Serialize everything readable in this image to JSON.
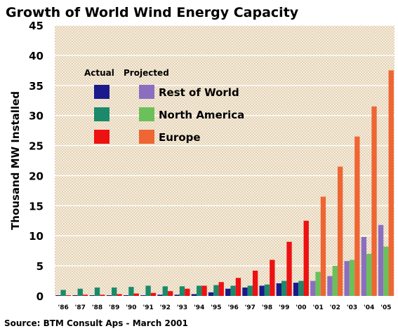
{
  "chart_data": {
    "type": "bar",
    "title": "Growth of World Wind Energy Capacity",
    "ylabel": "Thousand MW Installed",
    "xlabel": "",
    "ylim": [
      0,
      45
    ],
    "yticks": [
      0,
      5,
      10,
      15,
      20,
      25,
      30,
      35,
      40,
      45
    ],
    "grid": true,
    "legend_position": "upper-left",
    "legend": {
      "actual_header": "Actual",
      "projected_header": "Projected",
      "entries": [
        "Rest of World",
        "North America",
        "Europe"
      ]
    },
    "source": "Source: BTM Consult Aps - March 2001",
    "categories": [
      "'86",
      "'87",
      "'88",
      "'89",
      "'90",
      "'91",
      "'92",
      "'93",
      "'94",
      "'95",
      "'96",
      "'97",
      "'98",
      "'99",
      "'00",
      "'01",
      "'02",
      "'03",
      "'04",
      "'05"
    ],
    "xtick_labels": [
      "'86",
      "'87",
      "'88",
      "'89",
      "'90",
      "'91",
      "'92",
      "'93",
      "'94",
      "'95",
      "'96",
      "'97",
      "'98",
      "'99",
      "'00",
      "'01",
      "'02",
      "'03",
      "'04",
      "'05"
    ],
    "projected_from_index": 15,
    "colors": {
      "rest_actual": "#1a1a8c",
      "rest_projected": "#8a6fc0",
      "na_actual": "#1a8a6a",
      "na_projected": "#6cc05a",
      "eu_actual": "#ee1111",
      "eu_projected": "#ee6633"
    },
    "series": [
      {
        "name": "Rest of World",
        "values": [
          0.1,
          0.1,
          0.1,
          0.1,
          0.1,
          0.1,
          0.2,
          0.2,
          0.3,
          0.6,
          1.2,
          1.4,
          1.7,
          2.1,
          2.2,
          2.5,
          3.3,
          5.8,
          9.8,
          11.8
        ]
      },
      {
        "name": "North America",
        "values": [
          1.0,
          1.2,
          1.4,
          1.4,
          1.5,
          1.7,
          1.6,
          1.6,
          1.7,
          1.8,
          1.7,
          1.7,
          1.9,
          2.5,
          2.5,
          4.0,
          5.0,
          6.0,
          7.0,
          8.2
        ]
      },
      {
        "name": "Europe",
        "values": [
          0.1,
          0.2,
          0.2,
          0.3,
          0.4,
          0.5,
          0.8,
          1.2,
          1.7,
          2.3,
          3.0,
          4.2,
          6.0,
          9.0,
          12.5,
          16.5,
          21.5,
          26.5,
          31.5,
          37.5
        ]
      }
    ]
  }
}
